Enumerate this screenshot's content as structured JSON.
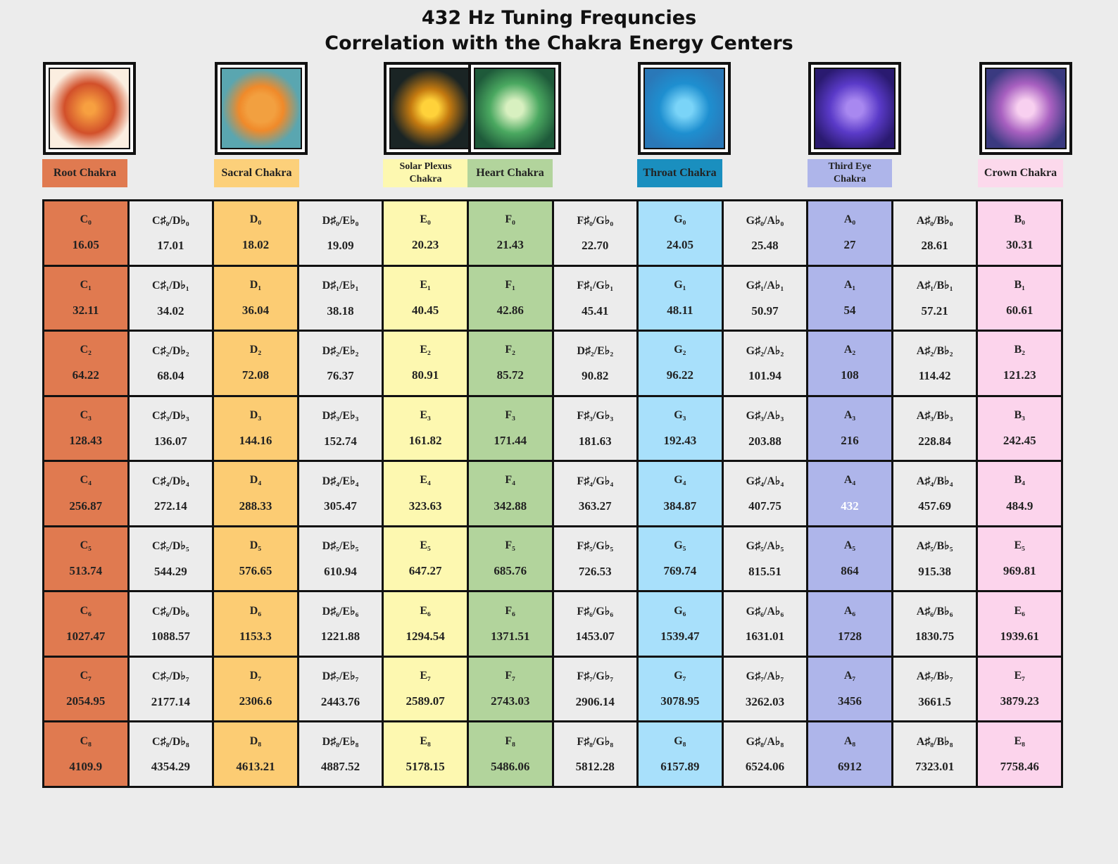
{
  "header": {
    "title_line1": "432 Hz Tuning Frequncies",
    "title_line2": "Correlation with the Chakra Energy Centers"
  },
  "chakras": [
    {
      "label": "Root Chakra"
    },
    {
      "label": "Sacral Chakra"
    },
    {
      "label": "Solar Plexus Chakra"
    },
    {
      "label": "Heart  Chakra"
    },
    {
      "label": "Throat Chakra"
    },
    {
      "label": "Third Eye Chakra"
    },
    {
      "label": "Crown Chakra"
    }
  ],
  "table": {
    "rows": [
      [
        [
          "C₀",
          "16.05"
        ],
        [
          "C♯₀/D♭₀",
          "17.01"
        ],
        [
          "D₀",
          "18.02"
        ],
        [
          "D♯₀/E♭₀",
          "19.09"
        ],
        [
          "E₀",
          "20.23"
        ],
        [
          "F₀",
          "21.43"
        ],
        [
          "F♯₀/G♭₀",
          "22.70"
        ],
        [
          "G₀",
          "24.05"
        ],
        [
          "G♯₀/A♭₀",
          "25.48"
        ],
        [
          "A₀",
          "27"
        ],
        [
          "A♯₀/B♭₀",
          "28.61"
        ],
        [
          "B₀",
          "30.31"
        ]
      ],
      [
        [
          "C₁",
          "32.11"
        ],
        [
          "C♯₁/D♭₁",
          "34.02"
        ],
        [
          "D₁",
          "36.04"
        ],
        [
          "D♯₁/E♭₁",
          "38.18"
        ],
        [
          "E₁",
          "40.45"
        ],
        [
          "F₁",
          "42.86"
        ],
        [
          "F♯₁/G♭₁",
          "45.41"
        ],
        [
          "G₁",
          "48.11"
        ],
        [
          "G♯₁/A♭₁",
          "50.97"
        ],
        [
          "A₁",
          "54"
        ],
        [
          "A♯₁/B♭₁",
          "57.21"
        ],
        [
          "B₁",
          "60.61"
        ]
      ],
      [
        [
          "C₂",
          "64.22"
        ],
        [
          "C♯₂/D♭₂",
          "68.04"
        ],
        [
          "D₂",
          "72.08"
        ],
        [
          "D♯₂/E♭₂",
          "76.37"
        ],
        [
          "E₂",
          "80.91"
        ],
        [
          "F₂",
          "85.72"
        ],
        [
          "D♯₂/E♭₂",
          "90.82"
        ],
        [
          "G₂",
          "96.22"
        ],
        [
          "G♯₂/A♭₂",
          "101.94"
        ],
        [
          "A₂",
          "108"
        ],
        [
          "A♯₂/B♭₂",
          "114.42"
        ],
        [
          "B₂",
          "121.23"
        ]
      ],
      [
        [
          "C₃",
          "128.43"
        ],
        [
          "C♯₃/D♭₃",
          "136.07"
        ],
        [
          "D₃",
          "144.16"
        ],
        [
          "D♯₃/E♭₃",
          "152.74"
        ],
        [
          "E₃",
          "161.82"
        ],
        [
          "F₃",
          "171.44"
        ],
        [
          "F♯₃/G♭₃",
          "181.63"
        ],
        [
          "G₃",
          "192.43"
        ],
        [
          "G♯₃/A♭₃",
          "203.88"
        ],
        [
          "A₃",
          "216"
        ],
        [
          "A♯₃/B♭₃",
          "228.84"
        ],
        [
          "B₃",
          "242.45"
        ]
      ],
      [
        [
          "C₄",
          "256.87"
        ],
        [
          "C♯₄/D♭₄",
          "272.14"
        ],
        [
          "D₄",
          "288.33"
        ],
        [
          "D♯₄/E♭₄",
          "305.47"
        ],
        [
          "E₄",
          "323.63"
        ],
        [
          "F₄",
          "342.88"
        ],
        [
          "F♯₄/G♭₄",
          "363.27"
        ],
        [
          "G₄",
          "384.87"
        ],
        [
          "G♯₄/A♭₄",
          "407.75"
        ],
        [
          "A₄",
          "432"
        ],
        [
          "A♯₄/B♭₄",
          "457.69"
        ],
        [
          "B₄",
          "484.9"
        ]
      ],
      [
        [
          "C₅",
          "513.74"
        ],
        [
          "C♯₅/D♭₅",
          "544.29"
        ],
        [
          "D₅",
          "576.65"
        ],
        [
          "D♯₅/E♭₅",
          "610.94"
        ],
        [
          "E₅",
          "647.27"
        ],
        [
          "F₅",
          "685.76"
        ],
        [
          "F♯₅/G♭₅",
          "726.53"
        ],
        [
          "G₅",
          "769.74"
        ],
        [
          "G♯₅/A♭₅",
          "815.51"
        ],
        [
          "A₅",
          "864"
        ],
        [
          "A♯₅/B♭₅",
          "915.38"
        ],
        [
          "E₅",
          "969.81"
        ]
      ],
      [
        [
          "C₆",
          "1027.47"
        ],
        [
          "C♯₆/D♭₆",
          "1088.57"
        ],
        [
          "D₆",
          "1153.3"
        ],
        [
          "D♯₆/E♭₆",
          "1221.88"
        ],
        [
          "E₆",
          "1294.54"
        ],
        [
          "F₆",
          "1371.51"
        ],
        [
          "F♯₆/G♭₆",
          "1453.07"
        ],
        [
          "G₆",
          "1539.47"
        ],
        [
          "G♯₆/A♭₆",
          "1631.01"
        ],
        [
          "A₆",
          "1728"
        ],
        [
          "A♯₆/B♭₆",
          "1830.75"
        ],
        [
          "E₆",
          "1939.61"
        ]
      ],
      [
        [
          "C₇",
          "2054.95"
        ],
        [
          "C♯₇/D♭₇",
          "2177.14"
        ],
        [
          "D₇",
          "2306.6"
        ],
        [
          "D♯₇/E♭₇",
          "2443.76"
        ],
        [
          "E₇",
          "2589.07"
        ],
        [
          "F₇",
          "2743.03"
        ],
        [
          "F♯₇/G♭₇",
          "2906.14"
        ],
        [
          "G₇",
          "3078.95"
        ],
        [
          "G♯₇/A♭₇",
          "3262.03"
        ],
        [
          "A₇",
          "3456"
        ],
        [
          "A♯₇/B♭₇",
          "3661.5"
        ],
        [
          "E₇",
          "3879.23"
        ]
      ],
      [
        [
          "C₈",
          "4109.9"
        ],
        [
          "C♯₈/D♭₈",
          "4354.29"
        ],
        [
          "D₈",
          "4613.21"
        ],
        [
          "D♯₈/E♭₈",
          "4887.52"
        ],
        [
          "E₈",
          "5178.15"
        ],
        [
          "F₈",
          "5486.06"
        ],
        [
          "F♯₈/G♭₈",
          "5812.28"
        ],
        [
          "G₈",
          "6157.89"
        ],
        [
          "G♯₈/A♭₈",
          "6524.06"
        ],
        [
          "A₈",
          "6912"
        ],
        [
          "A♯₈/B♭₈",
          "7323.01"
        ],
        [
          "E₈",
          "7758.46"
        ]
      ]
    ]
  }
}
